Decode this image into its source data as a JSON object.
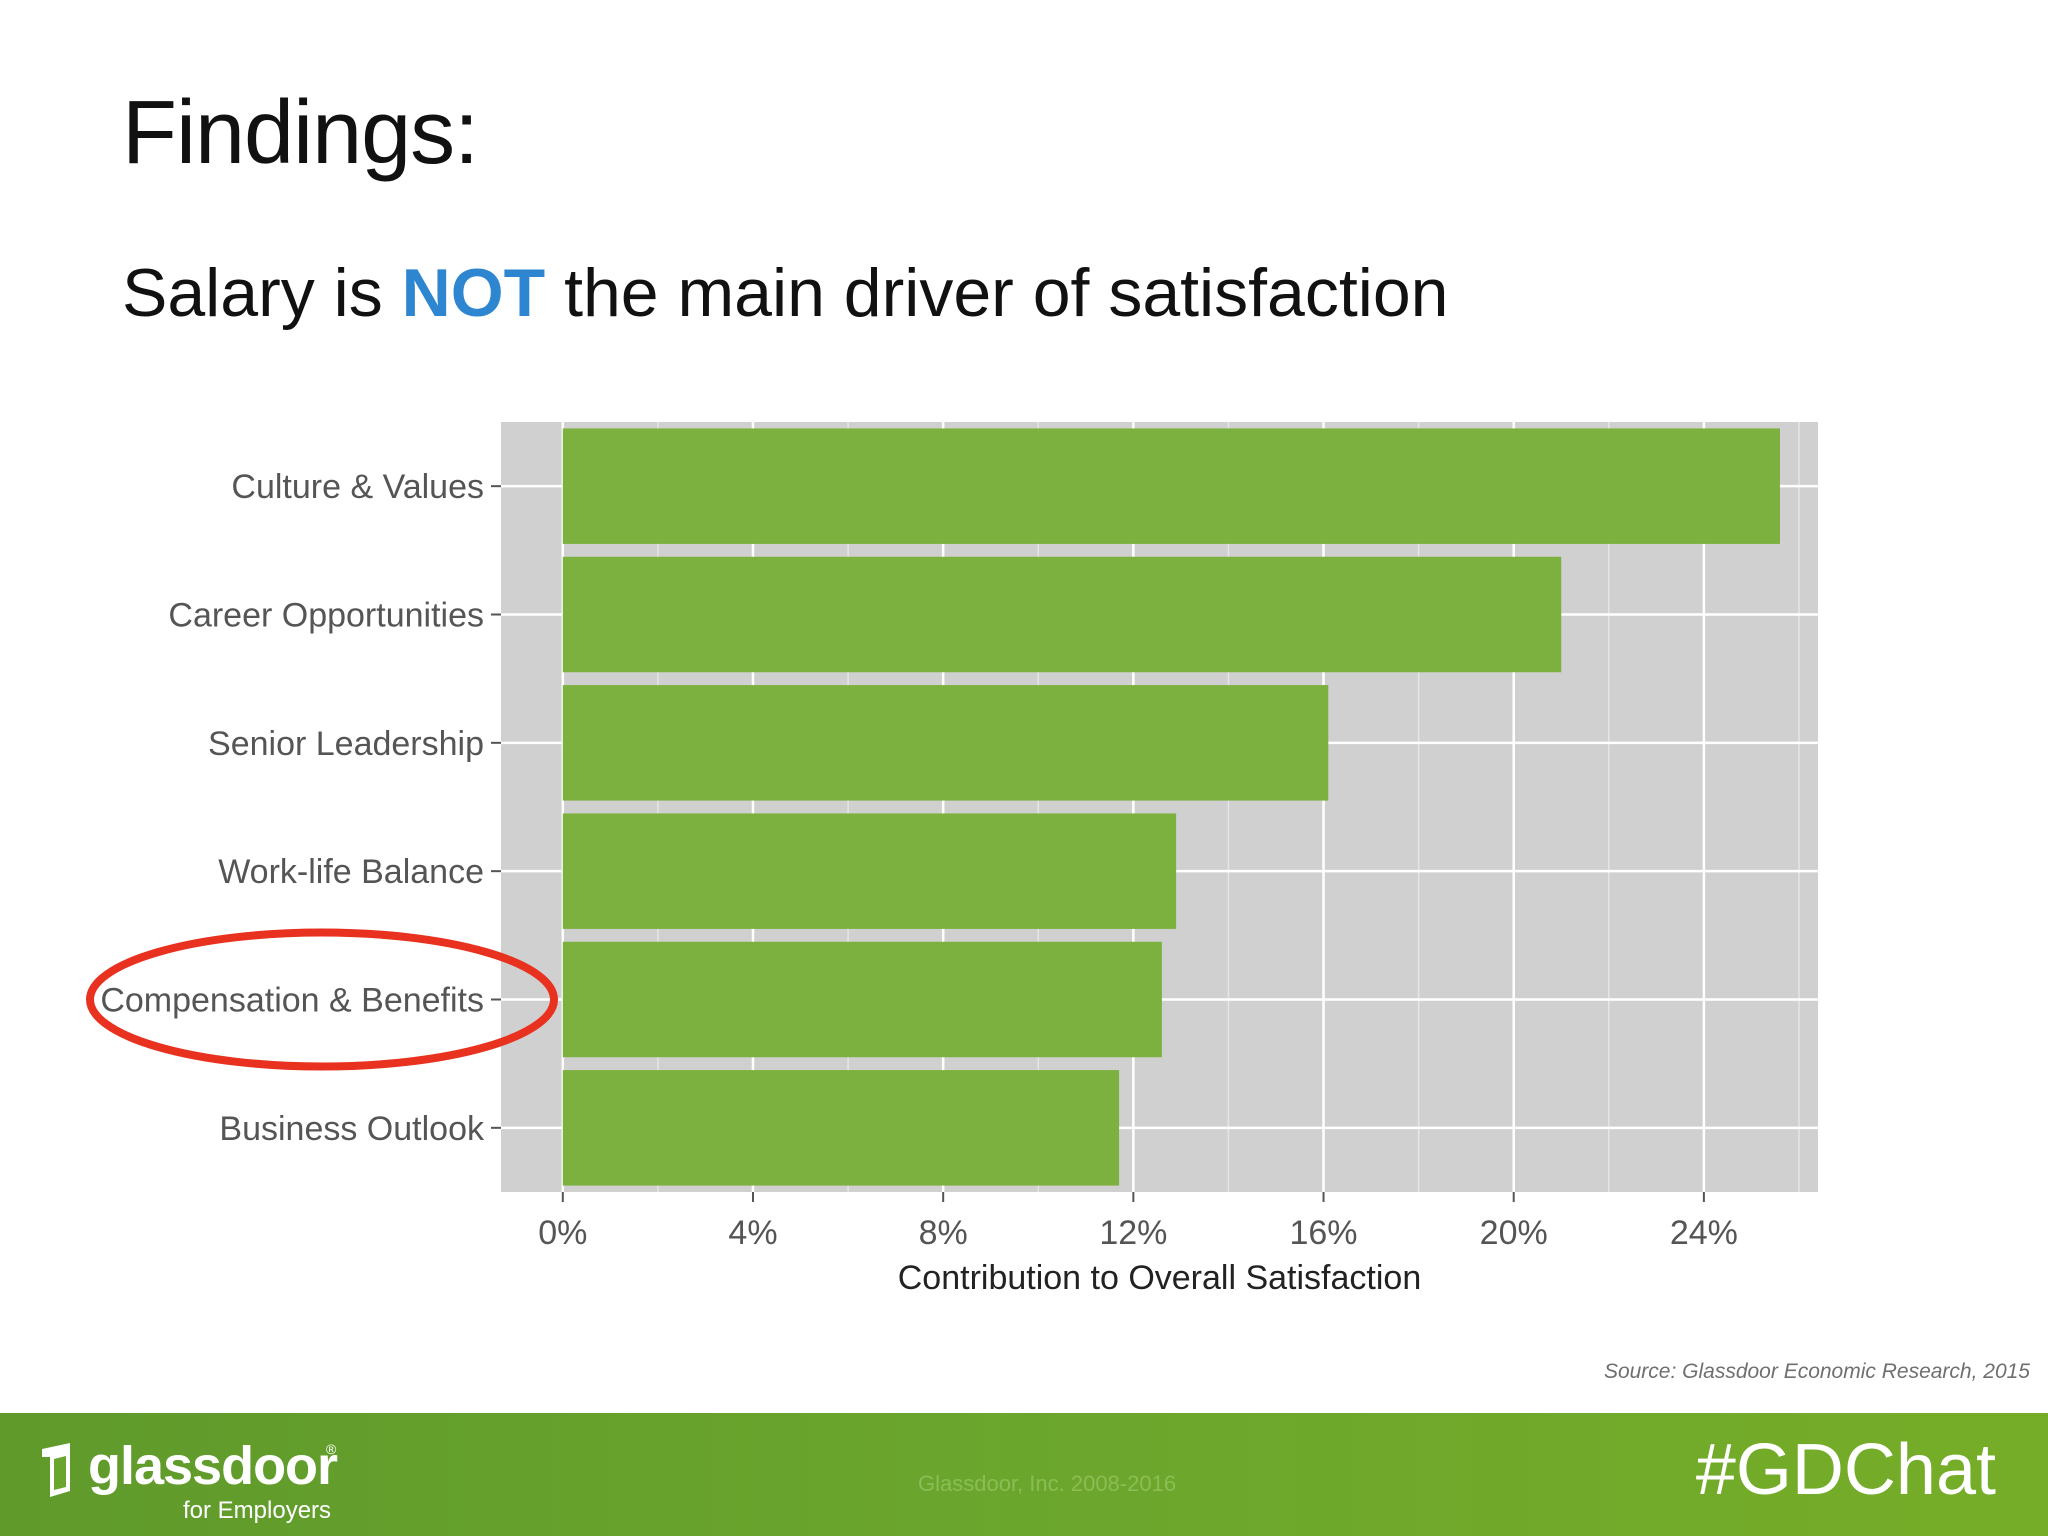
{
  "slide": {
    "title": "Findings:",
    "subtitle_before": "Salary is ",
    "subtitle_emphasis": "NOT",
    "subtitle_after": " the main driver of satisfaction",
    "emphasis_color": "#2e86d1"
  },
  "chart_data": {
    "type": "bar",
    "orientation": "horizontal",
    "categories": [
      "Culture & Values",
      "Career Opportunities",
      "Senior Leadership",
      "Work-life Balance",
      "Compensation & Benefits",
      "Business Outlook"
    ],
    "values": [
      25.6,
      21.0,
      16.1,
      12.9,
      12.6,
      11.7
    ],
    "xlabel": "Contribution to Overall Satisfaction",
    "ylabel": "",
    "xlim": [
      -1.3,
      26.4
    ],
    "ticks": [
      0,
      4,
      8,
      12,
      16,
      20,
      24
    ],
    "tick_labels": [
      "0%",
      "4%",
      "8%",
      "12%",
      "16%",
      "20%",
      "24%"
    ],
    "grid": true,
    "bar_color": "#7cb03f",
    "panel_color": "#d1d0d1",
    "highlighted_category": "Compensation & Benefits",
    "highlight_color": "#e8321f"
  },
  "source": "Source: Glassdoor Economic Research, 2015",
  "footer": {
    "logo_word": "glassdoor",
    "logo_registered": "®",
    "logo_sub": "for Employers",
    "copyright": "Glassdoor, Inc. 2008-2016",
    "hashtag": "#GDChat"
  }
}
